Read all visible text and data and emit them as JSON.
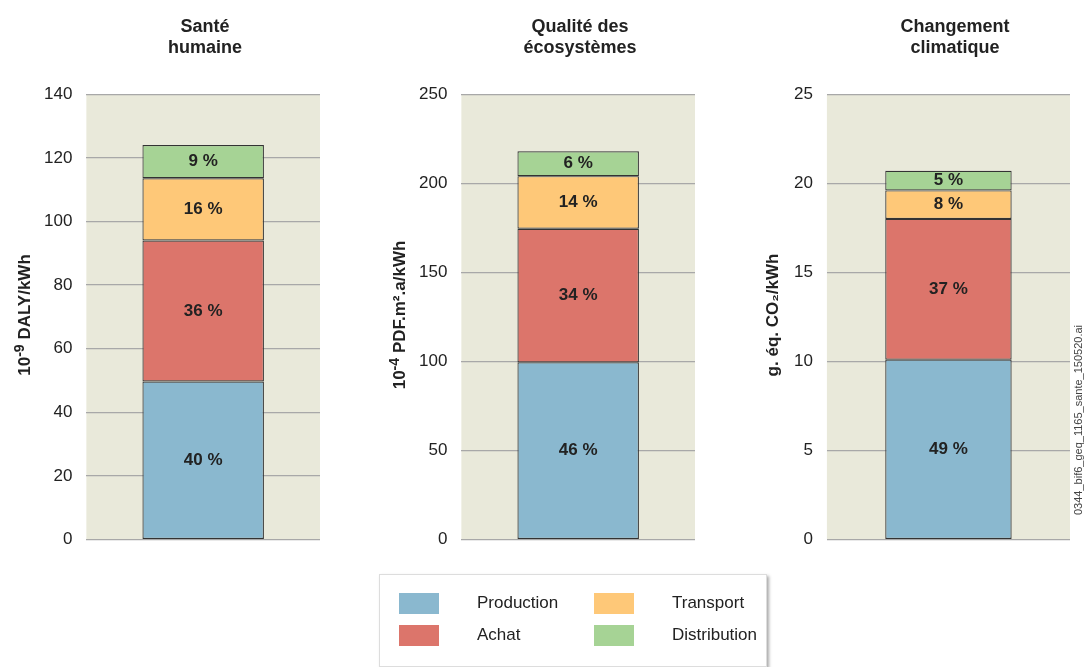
{
  "chart_data": [
    {
      "type": "bar",
      "title": "Santé humaine",
      "ylabel": "10$^{-9}$ DALY/kWh",
      "categories": [
        null
      ],
      "stacked": true,
      "grid": "y",
      "legend": "bottom",
      "ylim": [
        0,
        140
      ],
      "yticks": [
        0,
        20,
        40,
        60,
        80,
        100,
        120,
        140
      ],
      "annotations": [
        "40 %",
        "36 %",
        "16 %",
        "9 %"
      ],
      "series": [
        {
          "name": "Production",
          "color": "#8ab8cf",
          "values": [
            49.7
          ]
        },
        {
          "name": "Achat",
          "color": "#dc756b",
          "values": [
            44.3
          ]
        },
        {
          "name": "Transport",
          "color": "#fec878",
          "values": [
            19.6
          ]
        },
        {
          "name": "Distribution",
          "color": "#a6d395",
          "values": [
            10.4
          ]
        }
      ]
    },
    {
      "type": "bar",
      "title": "Qualité des écosystèmes",
      "ylabel": "10$^{-4}$ PDF.m².a/kWh",
      "categories": [
        null
      ],
      "stacked": true,
      "grid": "y",
      "ylim": [
        0,
        250
      ],
      "yticks": [
        0,
        50,
        100,
        150,
        200,
        250
      ],
      "annotations": [
        "46 %",
        "34 %",
        "14 %",
        "6 %"
      ],
      "series": [
        {
          "color": "#8ab8cf",
          "values": [
            99.5
          ]
        },
        {
          "color": "#dc756b",
          "values": [
            75
          ]
        },
        {
          "color": "#fec878",
          "values": [
            29.5
          ]
        },
        {
          "color": "#a6d395",
          "values": [
            14
          ]
        }
      ]
    },
    {
      "type": "bar",
      "title": "Changement climatique",
      "ylabel": "g. éq. CO₂/kWh",
      "categories": [
        null
      ],
      "stacked": true,
      "grid": "y",
      "ylim": [
        0,
        25
      ],
      "yticks": [
        0,
        5,
        10,
        15,
        20,
        25
      ],
      "annotations": [
        "49 %",
        "37 %",
        "8 %",
        "5 %",
        "0344_bif6_geq_1165_sante_150520.ai"
      ],
      "series": [
        {
          "color": "#8ab8cf",
          "values": [
            10.1
          ]
        },
        {
          "color": "#dc756b",
          "values": [
            7.9
          ]
        },
        {
          "color": "#fec878",
          "values": [
            1.6
          ]
        },
        {
          "color": "#a6d395",
          "values": [
            1.1
          ]
        }
      ]
    }
  ]
}
